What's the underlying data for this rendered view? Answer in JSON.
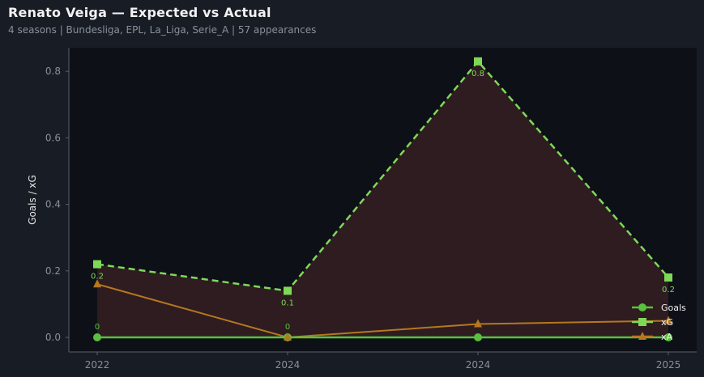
{
  "header": {
    "title": "Renato Veiga — Expected vs Actual",
    "subtitle": "4 seasons | Bundesliga, EPL, La_Liga, Serie_A | 57 appearances"
  },
  "colors": {
    "background": "#181c25",
    "plot_bg": "#0d1017",
    "goals": "#5bbf3f",
    "xg": "#7ed957",
    "xa": "#b5781e",
    "fill": "#2e1c20",
    "axis": "#5a5f69",
    "tick_text": "#8a8f99"
  },
  "chart_data": {
    "type": "line",
    "title": "Renato Veiga — Expected vs Actual",
    "subtitle": "4 seasons | Bundesliga, EPL, La_Liga, Serie_A | 57 appearances",
    "xlabel": "",
    "ylabel": "Goals / xG",
    "categories": [
      "2022",
      "2024",
      "2024",
      "2025"
    ],
    "ylim": [
      -0.04,
      0.86
    ],
    "yticks": [
      0.0,
      0.2,
      0.4,
      0.6,
      0.8
    ],
    "ytick_labels": [
      "0.0",
      "0.2",
      "0.4",
      "0.6",
      "0.8"
    ],
    "grid": false,
    "legend_position": "lower right",
    "series": [
      {
        "name": "Goals",
        "values": [
          0,
          0,
          0,
          0
        ],
        "marker": "circle",
        "style": "solid",
        "labels": [
          "0",
          "0",
          "",
          ""
        ]
      },
      {
        "name": "xG",
        "values": [
          0.22,
          0.14,
          0.83,
          0.18
        ],
        "marker": "square",
        "style": "dashed",
        "labels": [
          "0.2",
          "0.1",
          "0.8",
          "0.2"
        ]
      },
      {
        "name": "xA",
        "values": [
          0.16,
          0.0,
          0.04,
          0.05
        ],
        "marker": "triangle",
        "style": "solid"
      }
    ],
    "fill_between": {
      "from": "Goals",
      "to": "xG",
      "color": "#2e1c20"
    }
  }
}
